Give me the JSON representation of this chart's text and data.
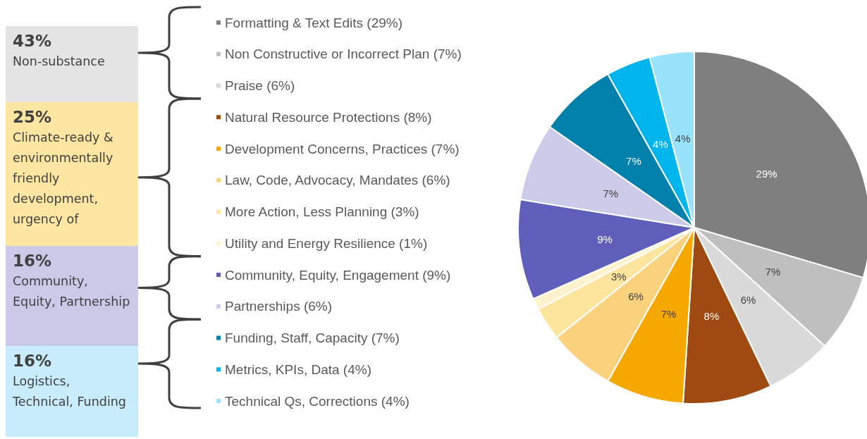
{
  "chart_data": {
    "type": "pie",
    "categories": [
      "Formatting & Text Edits (29%)",
      "Non Constructive or Incorrect Plan (7%)",
      "Praise (6%)",
      "Natural Resource Protections (8%)",
      "Development Concerns, Practices (7%)",
      "Law, Code, Advocacy, Mandates (6%)",
      "More Action, Less Planning (3%)",
      "Utility and Energy Resilience (1%)",
      "Community, Equity, Engagement (9%)",
      "Partnerships (6%)",
      "Funding, Staff, Capacity (7%)",
      "Metrics, KPIs, Data (4%)",
      "Technical Qs, Corrections (4%)"
    ],
    "values": [
      29,
      7,
      6,
      8,
      7,
      6,
      3,
      1,
      9,
      7,
      7,
      4,
      4
    ],
    "value_labels": [
      "29%",
      "7%",
      "6%",
      "8%",
      "7%",
      "6%",
      "3%",
      null,
      "9%",
      "7%",
      "7%",
      "4%",
      "4%"
    ],
    "colors": [
      "#7f7f7f",
      "#bfbfbf",
      "#d9d9d9",
      "#9e4a10",
      "#f5a800",
      "#fad27e",
      "#fde59e",
      "#fff2cc",
      "#5f5fbb",
      "#ccccea",
      "#0080aa",
      "#00b4ec",
      "#99e2fb"
    ],
    "legend": "left",
    "annotations": [
      "43%\nNon-substance",
      "25%\nClimate-ready & environmentally friendly development, urgency of",
      "16%\nCommunity, Equity, Partnership",
      "16%\nLogistics, Technical, Funding"
    ]
  }
}
